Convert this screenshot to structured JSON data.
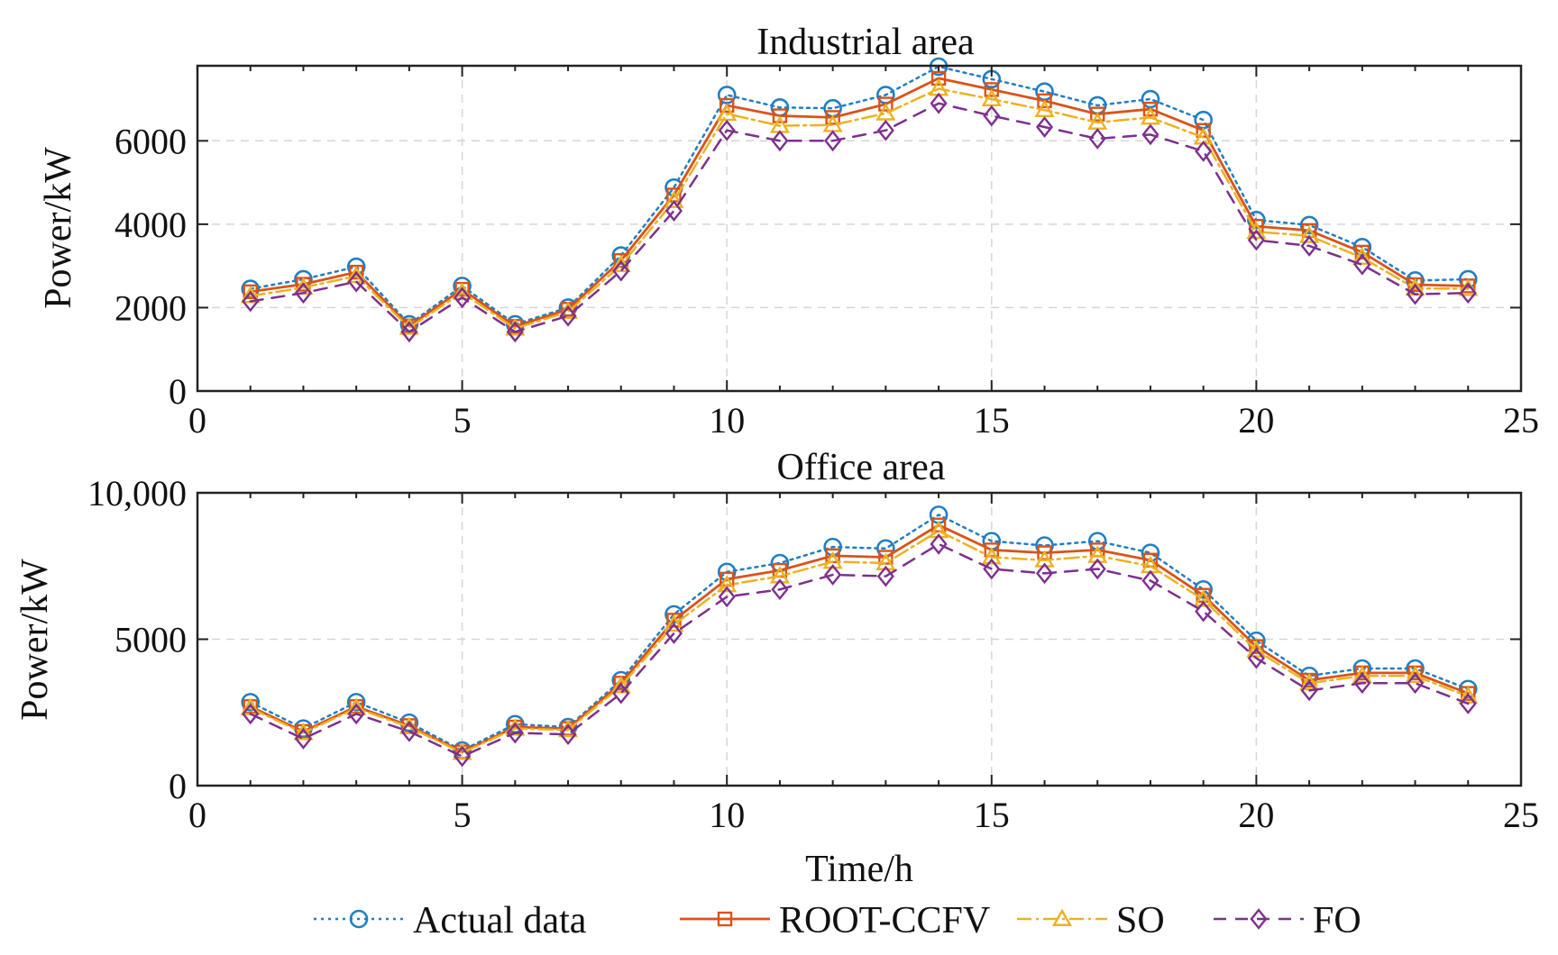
{
  "colors": {
    "Actual data": "#1f7fc4",
    "ROOT-CCFV": "#d95319",
    "SO": "#edb120",
    "FO": "#7e2f8e"
  },
  "legend": {
    "items": [
      {
        "label": "Actual data",
        "marker": "circle",
        "dash": "dotted"
      },
      {
        "label": "ROOT-CCFV",
        "marker": "square",
        "dash": "solid"
      },
      {
        "label": "SO",
        "marker": "triangle",
        "dash": "dashdot"
      },
      {
        "label": "FO",
        "marker": "diamond",
        "dash": "dashed"
      }
    ]
  },
  "chart_data": [
    {
      "type": "line",
      "title": "Industrial area",
      "xlabel": "",
      "ylabel": "Power/kW",
      "xlim": [
        0,
        25
      ],
      "ylim": [
        0,
        7800
      ],
      "xticks": [
        0,
        5,
        10,
        15,
        20,
        25
      ],
      "yticks": [
        0,
        2000,
        4000,
        6000
      ],
      "ytick_labels": [
        "0",
        "2000",
        "4000",
        "6000"
      ],
      "grid": true,
      "x": [
        1,
        2,
        3,
        4,
        5,
        6,
        7,
        8,
        9,
        10,
        11,
        12,
        13,
        14,
        15,
        16,
        17,
        18,
        19,
        20,
        21,
        22,
        23,
        24
      ],
      "series": [
        {
          "name": "Actual data",
          "values": [
            2450,
            2680,
            2980,
            1600,
            2520,
            1600,
            2000,
            3250,
            4880,
            7100,
            6800,
            6780,
            7100,
            7780,
            7480,
            7180,
            6850,
            7000,
            6500,
            4100,
            3980,
            3450,
            2650,
            2680
          ]
        },
        {
          "name": "ROOT-CCFV",
          "values": [
            2380,
            2560,
            2850,
            1560,
            2440,
            1550,
            1960,
            3130,
            4700,
            6850,
            6600,
            6560,
            6880,
            7500,
            7230,
            6960,
            6640,
            6760,
            6250,
            3950,
            3850,
            3330,
            2550,
            2520
          ]
        },
        {
          "name": "SO",
          "values": [
            2280,
            2480,
            2760,
            1520,
            2360,
            1500,
            1900,
            3020,
            4560,
            6650,
            6360,
            6380,
            6660,
            7250,
            7000,
            6740,
            6440,
            6560,
            6080,
            3820,
            3720,
            3200,
            2460,
            2450
          ]
        },
        {
          "name": "FO",
          "values": [
            2150,
            2350,
            2620,
            1420,
            2240,
            1420,
            1800,
            2880,
            4320,
            6250,
            6000,
            6000,
            6250,
            6900,
            6600,
            6330,
            6050,
            6150,
            5750,
            3620,
            3480,
            3030,
            2320,
            2350
          ]
        }
      ]
    },
    {
      "type": "line",
      "title": "Office area",
      "xlabel": "Time/h",
      "ylabel": "Power/kW",
      "xlim": [
        0,
        25
      ],
      "ylim": [
        0,
        10000
      ],
      "xticks": [
        0,
        5,
        10,
        15,
        20,
        25
      ],
      "yticks": [
        0,
        5000,
        10000
      ],
      "ytick_labels": [
        "0",
        "5000",
        "10,000"
      ],
      "grid": true,
      "x": [
        1,
        2,
        3,
        4,
        5,
        6,
        7,
        8,
        9,
        10,
        11,
        12,
        13,
        14,
        15,
        16,
        17,
        18,
        19,
        20,
        21,
        22,
        23,
        24
      ],
      "series": [
        {
          "name": "Actual data",
          "values": [
            2850,
            1950,
            2850,
            2150,
            1200,
            2100,
            2000,
            3600,
            5850,
            7300,
            7600,
            8150,
            8100,
            9250,
            8350,
            8200,
            8350,
            7950,
            6700,
            4950,
            3750,
            4000,
            4000,
            3300
          ]
        },
        {
          "name": "ROOT-CCFV",
          "values": [
            2700,
            1850,
            2700,
            2050,
            1150,
            2000,
            1950,
            3500,
            5650,
            7050,
            7350,
            7850,
            7800,
            8900,
            8050,
            7950,
            8050,
            7700,
            6500,
            4750,
            3600,
            3850,
            3850,
            3150
          ]
        },
        {
          "name": "SO",
          "values": [
            2650,
            1800,
            2650,
            2000,
            1120,
            1950,
            1900,
            3400,
            5500,
            6850,
            7150,
            7650,
            7600,
            8700,
            7800,
            7700,
            7850,
            7500,
            6350,
            4620,
            3500,
            3750,
            3750,
            3050
          ]
        },
        {
          "name": "FO",
          "values": [
            2450,
            1600,
            2450,
            1850,
            1000,
            1800,
            1750,
            3150,
            5200,
            6450,
            6700,
            7200,
            7150,
            8250,
            7400,
            7250,
            7400,
            7000,
            5950,
            4350,
            3250,
            3500,
            3500,
            2800
          ]
        }
      ]
    }
  ]
}
